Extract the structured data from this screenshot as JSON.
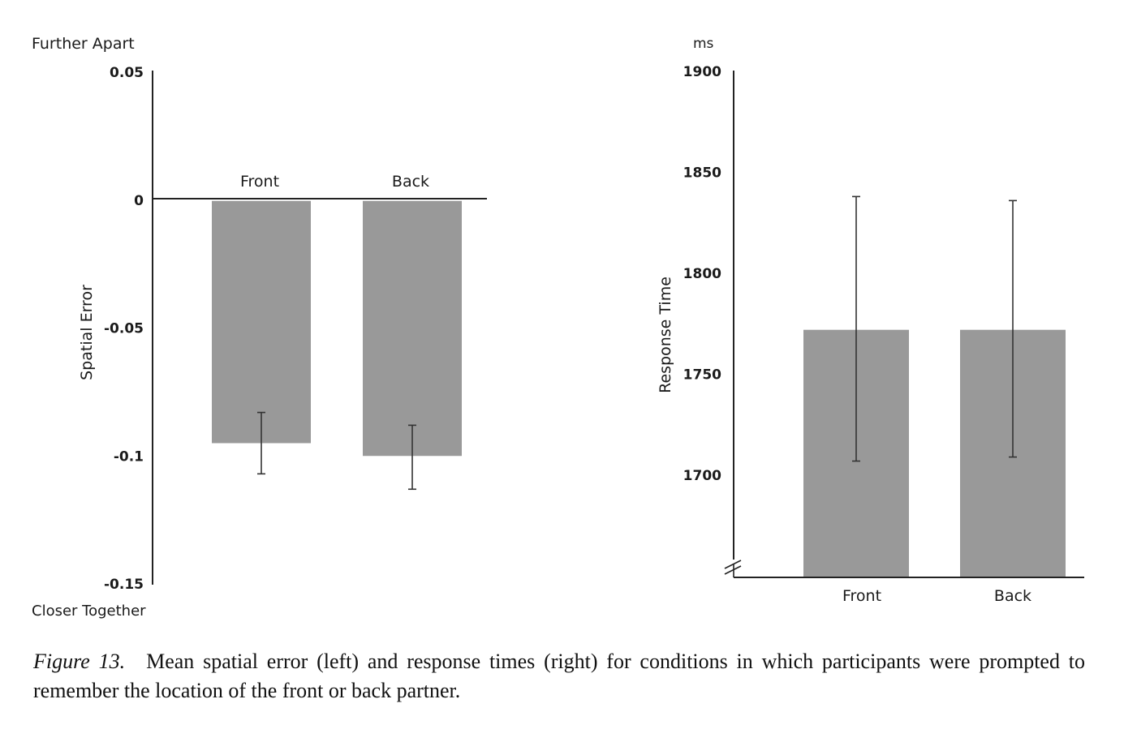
{
  "chart_data": [
    {
      "type": "bar",
      "categories": [
        "Front",
        "Back"
      ],
      "values": [
        -0.095,
        -0.1
      ],
      "error_low": [
        -0.107,
        -0.113
      ],
      "error_high": [
        -0.083,
        -0.088
      ],
      "ylabel": "Spatial Error",
      "ylim": [
        -0.15,
        0.05
      ],
      "yticks": [
        0.05,
        0,
        -0.05,
        -0.1,
        -0.15
      ],
      "ytick_labels": [
        "0.05",
        "0",
        "-0.05",
        "-0.1",
        "-0.15"
      ],
      "top_annotation": "Further Apart",
      "bottom_annotation": "Closer Together",
      "category_label_position": "above zero line",
      "bar_color": "#999999",
      "grid": false
    },
    {
      "type": "bar",
      "categories": [
        "Front",
        "Back"
      ],
      "values": [
        1772,
        1772
      ],
      "error_low": [
        1707,
        1709
      ],
      "error_high": [
        1838,
        1836
      ],
      "ylabel": "Response Time",
      "unit": "ms",
      "ylim": [
        1650,
        1900
      ],
      "axis_break": true,
      "yticks": [
        1900,
        1850,
        1800,
        1750,
        1700
      ],
      "ytick_labels": [
        "1900",
        "1850",
        "1800",
        "1750",
        "1700"
      ],
      "bar_color": "#999999",
      "grid": false
    }
  ],
  "caption": {
    "label": "Figure 13.",
    "text": "Mean spatial error (left) and response times (right) for conditions in which participants were prompted to remember the location of the front or back partner."
  }
}
